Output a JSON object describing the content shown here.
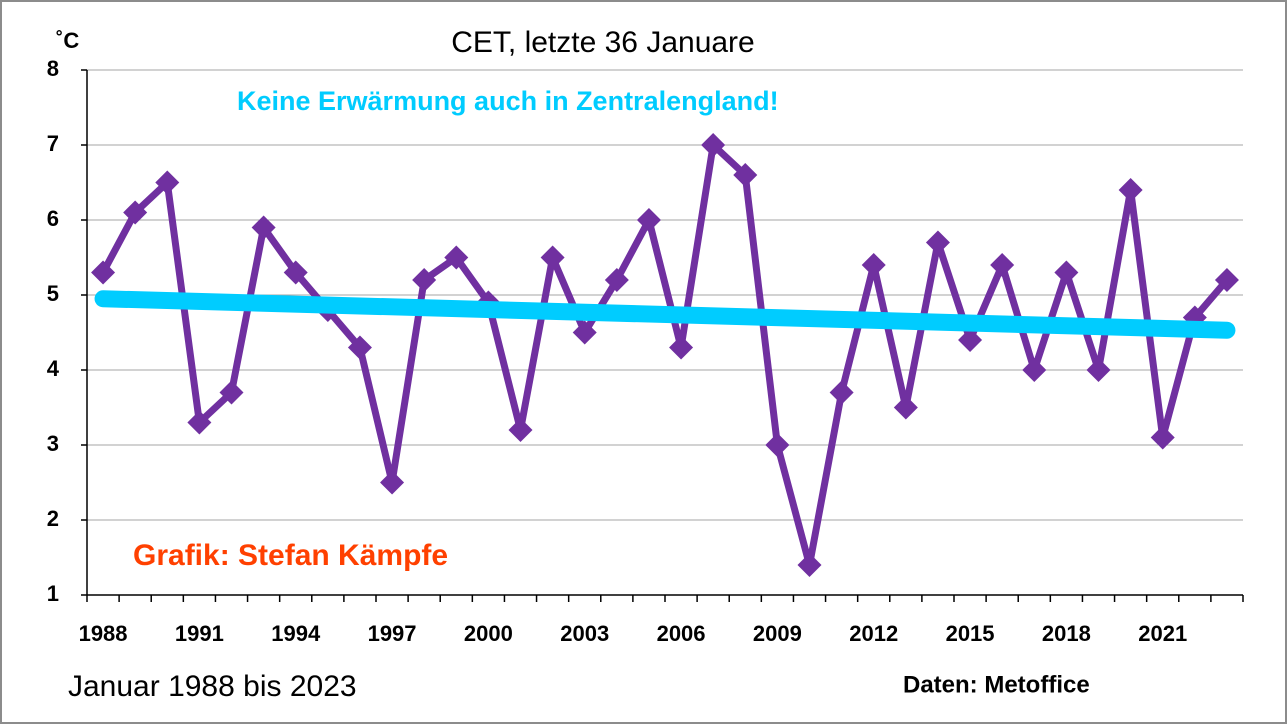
{
  "chart_data": {
    "type": "line",
    "title": "CET, letzte 36 Januare",
    "y_unit": "˚C",
    "annotations": {
      "headline": "Keine Erwärmung auch in Zentralengland!",
      "credit": "Grafik: Stefan Kämpfe",
      "period": "Januar 1988 bis 2023",
      "source": "Daten: Metoffice"
    },
    "categories": [
      "1988",
      null,
      null,
      "1991",
      null,
      null,
      "1994",
      null,
      null,
      "1997",
      null,
      null,
      "2000",
      null,
      null,
      "2003",
      null,
      null,
      "2006",
      null,
      null,
      "2009",
      null,
      null,
      "2012",
      null,
      null,
      "2015",
      null,
      null,
      "2018",
      null,
      null,
      "2021",
      null,
      null
    ],
    "series": [
      {
        "color": "#7030a0",
        "values": [
          5.3,
          6.1,
          6.5,
          3.3,
          3.7,
          5.9,
          5.3,
          4.8,
          4.3,
          2.5,
          5.2,
          5.5,
          4.9,
          3.2,
          5.5,
          4.5,
          5.2,
          6.0,
          4.3,
          7.0,
          6.6,
          3.0,
          1.4,
          3.7,
          5.4,
          3.5,
          5.7,
          4.4,
          5.4,
          4.0,
          5.3,
          4.0,
          6.4,
          3.1,
          4.7,
          5.2
        ]
      }
    ],
    "trend": {
      "color": "#00ccff",
      "values": [
        4.95,
        4.53
      ]
    },
    "ylim": [
      1,
      8
    ],
    "yticks": [
      1,
      2,
      3,
      4,
      5,
      6,
      7,
      8
    ],
    "grid": true
  }
}
